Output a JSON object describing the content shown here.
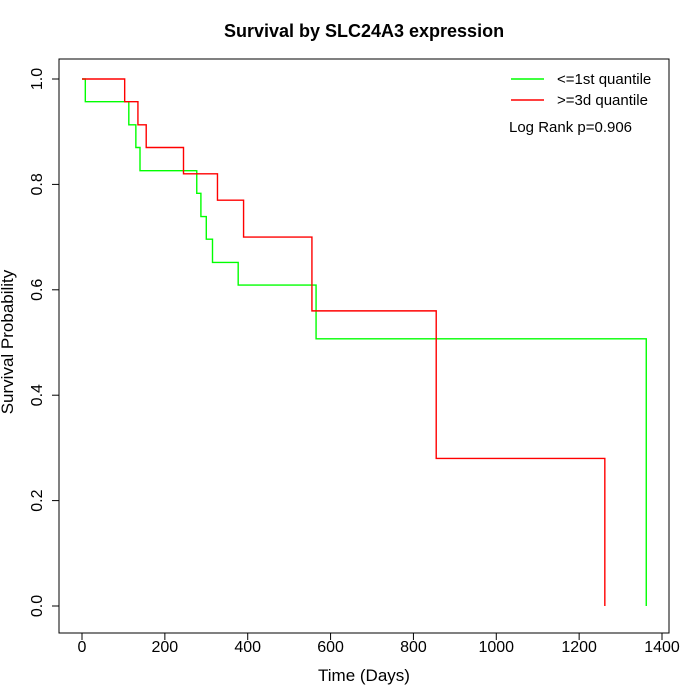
{
  "chart_data": {
    "type": "line",
    "title": "Survival by SLC24A3 expression",
    "xlabel": "Time (Days)",
    "ylabel": "Survival Probability",
    "xlim": [
      0,
      1400
    ],
    "ylim": [
      0,
      1.0
    ],
    "x_ticks": [
      0,
      200,
      400,
      600,
      800,
      1000,
      1200,
      1400
    ],
    "y_ticks": [
      0.0,
      0.2,
      0.4,
      0.6,
      0.8,
      1.0
    ],
    "x_tick_labels": [
      "0",
      "200",
      "400",
      "600",
      "800",
      "1000",
      "1200",
      "1400"
    ],
    "y_tick_labels": [
      "0.0",
      "0.2",
      "0.4",
      "0.6",
      "0.8",
      "1.0"
    ],
    "grid": false,
    "legend_position": "top-right",
    "annotation": "Log Rank p=0.906",
    "series": [
      {
        "name": "<=1st quantile",
        "color": "#00ff00",
        "x": [
          0,
          8,
          113,
          130,
          140,
          277,
          281,
          287,
          300,
          315,
          377,
          565,
          1362,
          1362
        ],
        "y": [
          1.0,
          0.957,
          0.913,
          0.87,
          0.826,
          0.783,
          0.783,
          0.739,
          0.696,
          0.652,
          0.609,
          0.507,
          0.507,
          0.0
        ]
      },
      {
        "name": ">=3d quantile",
        "color": "#ff0000",
        "x": [
          0,
          103,
          135,
          155,
          245,
          327,
          390,
          555,
          855,
          1262,
          1262
        ],
        "y": [
          1.0,
          0.957,
          0.913,
          0.87,
          0.82,
          0.77,
          0.7,
          0.56,
          0.28,
          0.28,
          0.0
        ]
      }
    ]
  }
}
